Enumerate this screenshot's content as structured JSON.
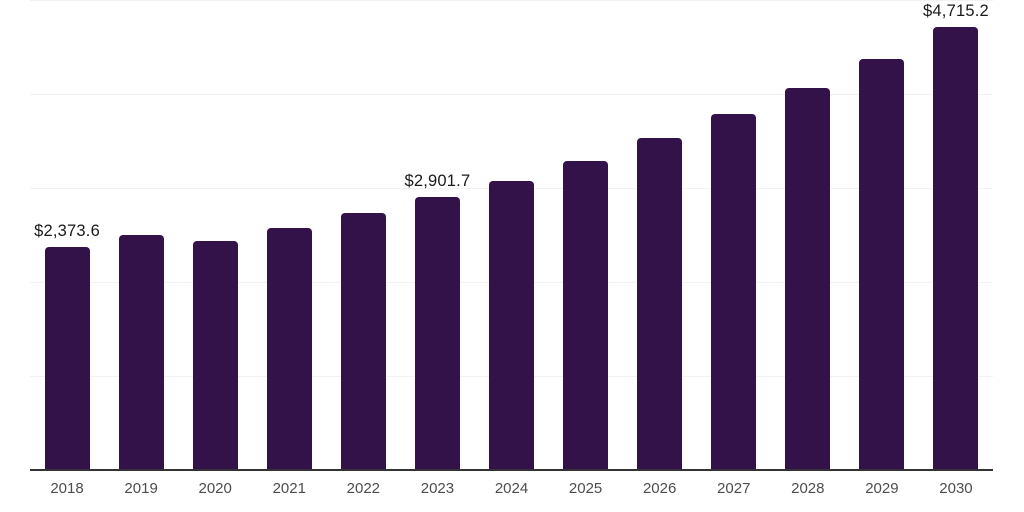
{
  "chart_data": {
    "type": "bar",
    "title": "",
    "xlabel": "",
    "ylabel": "",
    "categories": [
      "2018",
      "2019",
      "2020",
      "2021",
      "2022",
      "2023",
      "2024",
      "2025",
      "2026",
      "2027",
      "2028",
      "2029",
      "2030"
    ],
    "values": [
      2373.6,
      2500,
      2435,
      2570,
      2730,
      2901.7,
      3080,
      3290,
      3530,
      3790,
      4060,
      4370,
      4715.2
    ],
    "value_labels": [
      {
        "index": 0,
        "text": "$2,373.6"
      },
      {
        "index": 5,
        "text": "$2,901.7"
      },
      {
        "index": 12,
        "text": "$4,715.2"
      }
    ],
    "ylim": [
      0,
      5000
    ],
    "gridline_values": [
      1000,
      2000,
      3000,
      4000,
      5000
    ],
    "grid": "horizontal",
    "legend": "none",
    "colors": {
      "bar": "#33124a",
      "gridline": "#f2f2f2",
      "axis_line": "#333333",
      "tick_label": "#4d4d4d",
      "value_label": "#1a1a1a",
      "background": "#ffffff"
    }
  }
}
